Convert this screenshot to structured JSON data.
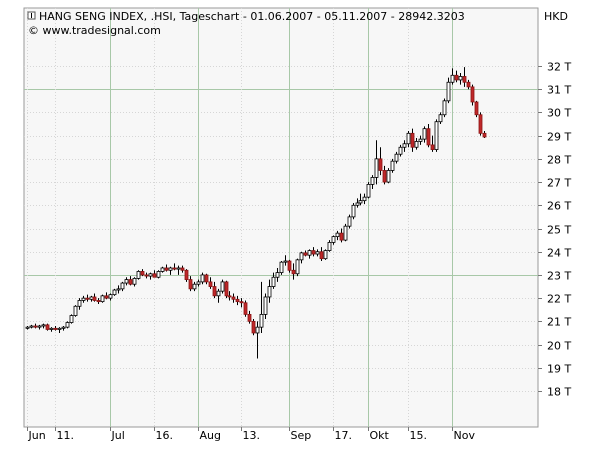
{
  "chart_data": {
    "type": "candlestick",
    "title": "HANG SENG INDEX, .HSI, Tageschart - 01.06.2007 - 05.11.2007 - 28942.3203",
    "source": "© www.tradesignal.com",
    "currency": "HKD",
    "ylim": [
      17000,
      33000
    ],
    "yticks": [
      {
        "v": 18000,
        "label": "18 T"
      },
      {
        "v": 19000,
        "label": "19 T"
      },
      {
        "v": 20000,
        "label": "20 T"
      },
      {
        "v": 21000,
        "label": "21 T"
      },
      {
        "v": 22000,
        "label": "22 T"
      },
      {
        "v": 23000,
        "label": "23 T"
      },
      {
        "v": 24000,
        "label": "24 T"
      },
      {
        "v": 25000,
        "label": "25 T"
      },
      {
        "v": 26000,
        "label": "26 T"
      },
      {
        "v": 27000,
        "label": "27 T"
      },
      {
        "v": 28000,
        "label": "28 T"
      },
      {
        "v": 29000,
        "label": "29 T"
      },
      {
        "v": 30000,
        "label": "30 T"
      },
      {
        "v": 31000,
        "label": "31 T"
      },
      {
        "v": 32000,
        "label": "32 T"
      }
    ],
    "major_y": [
      23000,
      31000
    ],
    "xticks": [
      {
        "i": 0,
        "label": "Jun",
        "major": false
      },
      {
        "i": 7,
        "label": "11.",
        "major": false
      },
      {
        "i": 21,
        "label": "Jul",
        "major": true
      },
      {
        "i": 32,
        "label": "16.",
        "major": false
      },
      {
        "i": 43,
        "label": "Aug",
        "major": true
      },
      {
        "i": 54,
        "label": "13.",
        "major": false
      },
      {
        "i": 66,
        "label": "Sep",
        "major": true
      },
      {
        "i": 77,
        "label": "17.",
        "major": false
      },
      {
        "i": 86,
        "label": "Okt",
        "major": true
      },
      {
        "i": 96,
        "label": "15.",
        "major": false
      },
      {
        "i": 107,
        "label": "Nov",
        "major": true
      }
    ],
    "n_slots": 123,
    "ohlc": [
      [
        20700,
        20800,
        20650,
        20750
      ],
      [
        20750,
        20850,
        20700,
        20800
      ],
      [
        20800,
        20900,
        20700,
        20750
      ],
      [
        20750,
        20850,
        20650,
        20800
      ],
      [
        20800,
        20900,
        20700,
        20850
      ],
      [
        20850,
        20900,
        20600,
        20650
      ],
      [
        20650,
        20750,
        20550,
        20700
      ],
      [
        20700,
        20800,
        20600,
        20650
      ],
      [
        20650,
        20750,
        20500,
        20700
      ],
      [
        20700,
        20800,
        20600,
        20750
      ],
      [
        20750,
        21000,
        20700,
        20950
      ],
      [
        20950,
        21300,
        20900,
        21250
      ],
      [
        21250,
        21700,
        21200,
        21650
      ],
      [
        21650,
        22000,
        21500,
        21900
      ],
      [
        21900,
        22100,
        21800,
        22000
      ],
      [
        22000,
        22150,
        21850,
        21950
      ],
      [
        21950,
        22100,
        21850,
        22050
      ],
      [
        22050,
        22200,
        21850,
        21900
      ],
      [
        21900,
        22000,
        21750,
        21850
      ],
      [
        21850,
        22150,
        21800,
        22100
      ],
      [
        22100,
        22250,
        21950,
        22000
      ],
      [
        22000,
        22200,
        21900,
        22150
      ],
      [
        22150,
        22400,
        22100,
        22350
      ],
      [
        22350,
        22550,
        22200,
        22400
      ],
      [
        22400,
        22700,
        22300,
        22650
      ],
      [
        22650,
        22900,
        22550,
        22800
      ],
      [
        22800,
        22950,
        22550,
        22600
      ],
      [
        22600,
        22900,
        22500,
        22850
      ],
      [
        22850,
        23200,
        22800,
        23150
      ],
      [
        23150,
        23250,
        22950,
        23000
      ],
      [
        23000,
        23100,
        22850,
        22950
      ],
      [
        22950,
        23100,
        22800,
        23050
      ],
      [
        23050,
        23200,
        22900,
        22900
      ],
      [
        22900,
        23200,
        22850,
        23150
      ],
      [
        23150,
        23350,
        23100,
        23300
      ],
      [
        23300,
        23450,
        23150,
        23200
      ],
      [
        23200,
        23350,
        23000,
        23300
      ],
      [
        23300,
        23500,
        23200,
        23250
      ],
      [
        23250,
        23400,
        23000,
        23300
      ],
      [
        23300,
        23400,
        23100,
        23200
      ],
      [
        23200,
        23250,
        22700,
        22800
      ],
      [
        22800,
        22950,
        22300,
        22400
      ],
      [
        22400,
        22700,
        22300,
        22600
      ],
      [
        22600,
        22800,
        22500,
        22700
      ],
      [
        22700,
        23100,
        22600,
        23000
      ],
      [
        23000,
        23050,
        22600,
        22700
      ],
      [
        22700,
        22900,
        22400,
        22500
      ],
      [
        22500,
        22700,
        22000,
        22100
      ],
      [
        22100,
        22400,
        21800,
        22300
      ],
      [
        22300,
        22800,
        22200,
        22700
      ],
      [
        22700,
        22750,
        22000,
        22100
      ],
      [
        22100,
        22300,
        21900,
        22050
      ],
      [
        22050,
        22200,
        21800,
        21950
      ],
      [
        21950,
        22100,
        21700,
        21850
      ],
      [
        21850,
        22000,
        21600,
        21800
      ],
      [
        21800,
        21900,
        21200,
        21300
      ],
      [
        21300,
        21450,
        20900,
        21000
      ],
      [
        21000,
        21100,
        20400,
        20500
      ],
      [
        20500,
        21000,
        19400,
        20750
      ],
      [
        20750,
        22700,
        20500,
        21300
      ],
      [
        21300,
        22200,
        21100,
        22050
      ],
      [
        22050,
        22800,
        21800,
        22500
      ],
      [
        22500,
        23100,
        22400,
        22900
      ],
      [
        22900,
        23300,
        22700,
        23100
      ],
      [
        23100,
        23600,
        23000,
        23550
      ],
      [
        23550,
        23850,
        23400,
        23600
      ],
      [
        23600,
        23650,
        23100,
        23200
      ],
      [
        23200,
        23500,
        22800,
        23050
      ],
      [
        23050,
        23700,
        22950,
        23650
      ],
      [
        23650,
        24000,
        23500,
        23950
      ],
      [
        23950,
        24050,
        23800,
        23850
      ],
      [
        23850,
        24100,
        23700,
        24050
      ],
      [
        24050,
        24200,
        23800,
        23900
      ],
      [
        23900,
        24100,
        23800,
        24000
      ],
      [
        24000,
        24200,
        23600,
        23700
      ],
      [
        23700,
        24100,
        23650,
        24050
      ],
      [
        24050,
        24500,
        24000,
        24400
      ],
      [
        24400,
        24700,
        24300,
        24650
      ],
      [
        24650,
        24900,
        24500,
        24800
      ],
      [
        24800,
        25000,
        24400,
        24500
      ],
      [
        24500,
        25200,
        24450,
        25100
      ],
      [
        25100,
        25600,
        25000,
        25500
      ],
      [
        25500,
        26100,
        25400,
        26000
      ],
      [
        26000,
        26300,
        25900,
        26100
      ],
      [
        26100,
        26500,
        26000,
        26200
      ],
      [
        26200,
        26500,
        26050,
        26350
      ],
      [
        26350,
        27000,
        26300,
        26900
      ],
      [
        26900,
        27300,
        26700,
        27200
      ],
      [
        27200,
        28800,
        26900,
        28000
      ],
      [
        28000,
        28500,
        27300,
        27500
      ],
      [
        27500,
        27700,
        26900,
        27000
      ],
      [
        27000,
        27600,
        26950,
        27500
      ],
      [
        27500,
        28000,
        27400,
        27900
      ],
      [
        27900,
        28300,
        27800,
        28200
      ],
      [
        28200,
        28600,
        28100,
        28500
      ],
      [
        28500,
        28800,
        28300,
        28650
      ],
      [
        28650,
        29200,
        28500,
        29100
      ],
      [
        29100,
        29300,
        28300,
        28500
      ],
      [
        28500,
        28900,
        28400,
        28750
      ],
      [
        28750,
        29000,
        28600,
        28850
      ],
      [
        28850,
        29400,
        28700,
        29300
      ],
      [
        29300,
        29500,
        28500,
        28600
      ],
      [
        28600,
        29000,
        28300,
        28400
      ],
      [
        28400,
        29700,
        28300,
        29600
      ],
      [
        29600,
        30000,
        29500,
        29900
      ],
      [
        29900,
        30600,
        29800,
        30500
      ],
      [
        30500,
        31500,
        30400,
        31300
      ],
      [
        31300,
        31900,
        31200,
        31600
      ],
      [
        31600,
        31800,
        31300,
        31400
      ],
      [
        31400,
        31700,
        31200,
        31550
      ],
      [
        31550,
        31950,
        31100,
        31300
      ],
      [
        31300,
        31400,
        31000,
        31100
      ],
      [
        31100,
        31200,
        30300,
        30450
      ],
      [
        30450,
        30500,
        29800,
        29900
      ],
      [
        29900,
        30000,
        29000,
        29100
      ],
      [
        29100,
        29200,
        28900,
        28942
      ]
    ],
    "slots": [
      0,
      1,
      2,
      3,
      4,
      5,
      6,
      7,
      8,
      9,
      10,
      11,
      12,
      13,
      14,
      15,
      16,
      17,
      18,
      19,
      20,
      21,
      22,
      23,
      24,
      25,
      26,
      27,
      28,
      29,
      30,
      31,
      32,
      33,
      34,
      35,
      36,
      37,
      38,
      39,
      40,
      41,
      42,
      43,
      44,
      45,
      46,
      47,
      48,
      49,
      50,
      51,
      52,
      53,
      54,
      55,
      56,
      57,
      58,
      59,
      60,
      61,
      62,
      63,
      64,
      65,
      66,
      67,
      68,
      69,
      70,
      71,
      72,
      73,
      74,
      75,
      76,
      77,
      78,
      79,
      80,
      81,
      82,
      83,
      84,
      85,
      86,
      87,
      88,
      89,
      90,
      91,
      92,
      93,
      94,
      95,
      96,
      97,
      98,
      99,
      100,
      101,
      102,
      103,
      104,
      105,
      106,
      107,
      108,
      109,
      110,
      111
    ]
  }
}
